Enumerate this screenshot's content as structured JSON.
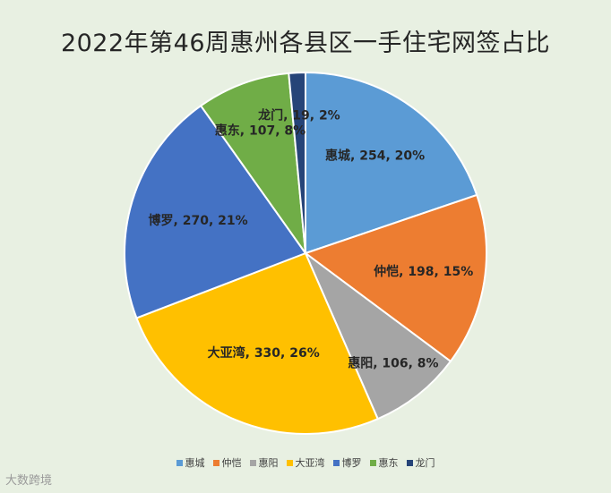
{
  "chart_data": {
    "type": "pie",
    "title": "2022年第46周惠州各县区一手住宅网签占比",
    "slices": [
      {
        "label": "惠城",
        "value": 254,
        "percent": "20%",
        "color": "#5b9bd5",
        "text": "惠城, 254, 20%"
      },
      {
        "label": "仲恺",
        "value": 198,
        "percent": "15%",
        "color": "#ed7d31",
        "text": "仲恺, 198, 15%"
      },
      {
        "label": "惠阳",
        "value": 106,
        "percent": "8%",
        "color": "#a5a5a5",
        "text": "惠阳, 106, 8%"
      },
      {
        "label": "大亚湾",
        "value": 330,
        "percent": "26%",
        "color": "#ffc000",
        "text": "大亚湾, 330, 26%"
      },
      {
        "label": "博罗",
        "value": 270,
        "percent": "21%",
        "color": "#4472c4",
        "text": "博罗, 270, 21%"
      },
      {
        "label": "惠东",
        "value": 107,
        "percent": "8%",
        "color": "#70ad47",
        "text": "惠东, 107, 8%"
      },
      {
        "label": "龙门",
        "value": 19,
        "percent": "2%",
        "color": "#264478",
        "text": "龙门, 19, 2%"
      }
    ],
    "legend": [
      "惠城",
      "仲恺",
      "惠阳",
      "大亚湾",
      "博罗",
      "惠东",
      "龙门"
    ],
    "legend_position": "bottom"
  },
  "footer": {
    "watermark": "大数跨境"
  }
}
